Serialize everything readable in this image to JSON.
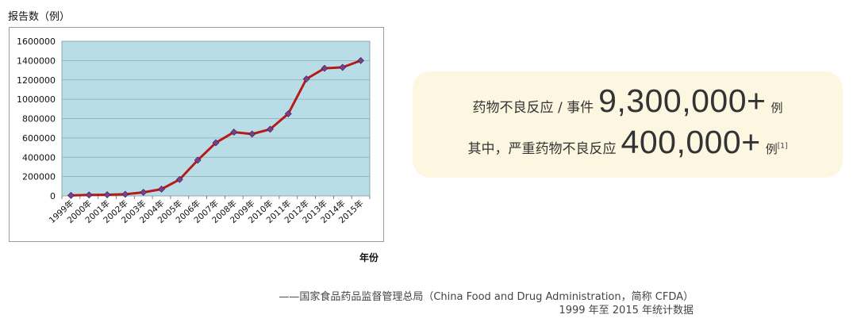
{
  "chart_data": {
    "type": "line",
    "ylabel": "报告数（例）",
    "xlabel": "年份",
    "categories": [
      "1999年",
      "2000年",
      "2001年",
      "2002年",
      "2003年",
      "2004年",
      "2005年",
      "2006年",
      "2007年",
      "2008年",
      "2009年",
      "2010年",
      "2011年",
      "2012年",
      "2013年",
      "2014年",
      "2015年"
    ],
    "series": [
      {
        "values": [
          5000,
          10000,
          12000,
          17000,
          37000,
          70000,
          170000,
          370000,
          550000,
          660000,
          640000,
          690000,
          850000,
          1210000,
          1320000,
          1330000,
          1400000
        ]
      }
    ],
    "ylim": [
      0,
      1600000
    ],
    "yticks": [
      0,
      200000,
      400000,
      600000,
      800000,
      1000000,
      1200000,
      1400000,
      1600000
    ],
    "grid": true,
    "colors": {
      "plot_bg": "#b9dde6",
      "line": "#b81919",
      "marker": "#7b3f8c",
      "grid": "#8fa9b0"
    }
  },
  "callout": {
    "line1_label": "药物不良反应 / 事件",
    "line1_value": "9,300,000+",
    "line1_unit": "例",
    "line2_label": "其中，严重药物不良反应",
    "line2_value": "400,000+",
    "line2_unit": "例",
    "line2_ref": "[1]"
  },
  "source": {
    "line1": "——国家食品药品监督管理总局（China Food and Drug Administration，简称 CFDA）",
    "line2": "1999 年至 2015 年统计数据"
  }
}
